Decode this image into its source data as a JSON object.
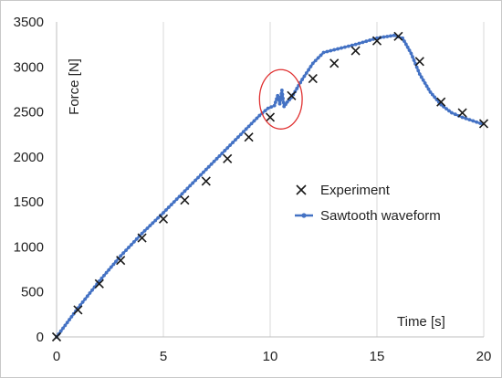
{
  "chart_data": {
    "type": "scatter",
    "xlabel": "Time [s]",
    "ylabel": "Force [N]",
    "xlim": [
      0,
      20
    ],
    "ylim": [
      0,
      3500
    ],
    "xticks": [
      "0",
      "5",
      "10",
      "15",
      "20"
    ],
    "yticks": [
      "0",
      "500",
      "1000",
      "1500",
      "2000",
      "2500",
      "3000",
      "3500"
    ],
    "grid": "vertical",
    "legend_position": "right",
    "series": [
      {
        "name": "Experiment",
        "marker": "x",
        "color": "#1a1a1a",
        "x": [
          0,
          1,
          2,
          3,
          4,
          5,
          6,
          7,
          8,
          9,
          10,
          11,
          12,
          13,
          14,
          15,
          16,
          17,
          18,
          19,
          20
        ],
        "y": [
          0,
          300,
          590,
          850,
          1100,
          1310,
          1520,
          1730,
          1980,
          2220,
          2440,
          2680,
          2870,
          3040,
          3180,
          3290,
          3340,
          3060,
          2610,
          2490,
          2370
        ]
      },
      {
        "name": "Sawtooth waveform",
        "marker": "dot-line",
        "color": "#4472c4",
        "x": [
          0,
          1,
          2,
          3,
          4,
          5,
          6,
          7,
          8,
          9,
          9.5,
          9.9,
          10.2,
          10.35,
          10.45,
          10.55,
          10.65,
          10.8,
          11,
          11.5,
          12,
          12.5,
          13,
          14,
          15,
          15.8,
          16.2,
          16.6,
          17,
          17.5,
          18,
          18.5,
          19,
          19.5,
          20
        ],
        "y": [
          0,
          320,
          620,
          900,
          1150,
          1380,
          1620,
          1860,
          2100,
          2340,
          2460,
          2540,
          2570,
          2680,
          2590,
          2740,
          2560,
          2610,
          2660,
          2860,
          3040,
          3160,
          3190,
          3250,
          3320,
          3350,
          3320,
          3150,
          2920,
          2720,
          2580,
          2490,
          2440,
          2400,
          2360
        ]
      }
    ],
    "annotation": {
      "type": "circle",
      "color": "#e03030",
      "cx": 10.5,
      "cy": 2640,
      "rx": 1.0,
      "ry": 330
    }
  }
}
